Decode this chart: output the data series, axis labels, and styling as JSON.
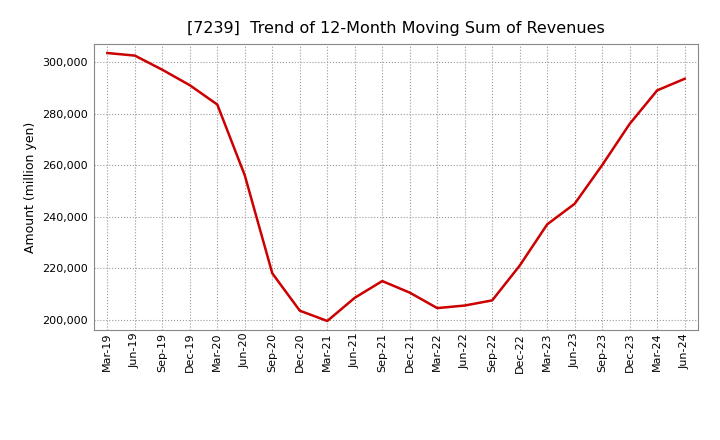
{
  "title": "[7239]  Trend of 12-Month Moving Sum of Revenues",
  "ylabel": "Amount (million yen)",
  "line_color": "#cc0000",
  "background_color": "#ffffff",
  "grid_color": "#999999",
  "x_labels": [
    "Mar-19",
    "Jun-19",
    "Sep-19",
    "Dec-19",
    "Mar-20",
    "Jun-20",
    "Sep-20",
    "Dec-20",
    "Mar-21",
    "Jun-21",
    "Sep-21",
    "Dec-21",
    "Mar-22",
    "Jun-22",
    "Sep-22",
    "Dec-22",
    "Mar-23",
    "Jun-23",
    "Sep-23",
    "Dec-23",
    "Mar-24",
    "Jun-24"
  ],
  "values": [
    303500,
    302500,
    297000,
    291000,
    283500,
    256000,
    218000,
    203500,
    199500,
    208500,
    215000,
    210500,
    204500,
    205500,
    207500,
    221000,
    237000,
    245000,
    260000,
    276000,
    289000,
    293500
  ],
  "ylim": [
    196000,
    307000
  ],
  "yticks": [
    200000,
    220000,
    240000,
    260000,
    280000,
    300000
  ],
  "figsize": [
    7.2,
    4.4
  ],
  "dpi": 100,
  "title_fontsize": 11.5,
  "axis_label_fontsize": 9,
  "tick_fontsize": 8
}
